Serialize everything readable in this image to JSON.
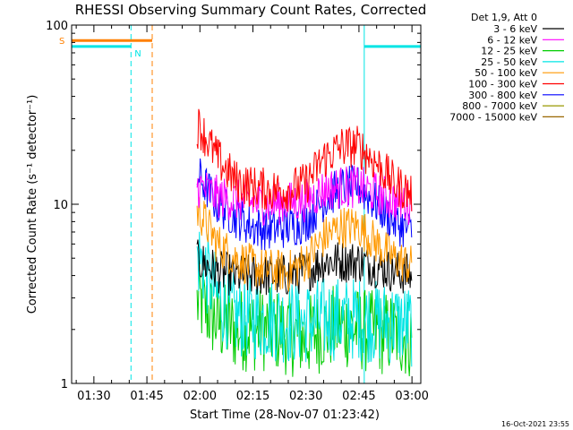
{
  "chart_data": {
    "type": "line",
    "title": "RHESSI Observing Summary Count Rates, Corrected",
    "xlabel": "Start Time (28-Nov-07 01:23:42)",
    "ylabel": "Corrected Count Rate (s⁻¹ detector⁻¹)",
    "x_tick_labels": [
      "01:30",
      "01:45",
      "02:00",
      "02:15",
      "02:30",
      "02:45",
      "03:00"
    ],
    "x_tick_times_min": [
      90,
      105,
      120,
      135,
      150,
      165,
      180
    ],
    "xlim_min": [
      83.7,
      182.5
    ],
    "y_scale": "log",
    "ylim": [
      1,
      100
    ],
    "y_tick_labels": [
      "1",
      "10",
      "100"
    ],
    "legend_title": "Det 1,9, Att 0",
    "legend_position": "right",
    "footer": "16-Oct-2021 23:55",
    "series": [
      {
        "name": "3 - 6 keV",
        "color": "#000000",
        "times_min": [
          90,
          95,
          100,
          105,
          110,
          115,
          120,
          125,
          130,
          135,
          140,
          145,
          150,
          155,
          160,
          165,
          170,
          175,
          180
        ],
        "values": [
          null,
          null,
          null,
          null,
          null,
          null,
          4.8,
          4.2,
          4.0,
          4.0,
          4.0,
          4.0,
          4.2,
          4.8,
          4.8,
          4.8,
          4.5,
          4.2,
          4.0
        ]
      },
      {
        "name": "6 - 12 keV",
        "color": "#ff00ff",
        "times_min": [
          90,
          95,
          100,
          105,
          110,
          115,
          120,
          125,
          130,
          135,
          140,
          145,
          150,
          155,
          160,
          165,
          170,
          175,
          180
        ],
        "values": [
          null,
          null,
          null,
          null,
          null,
          null,
          12.5,
          11.0,
          10.5,
          10.2,
          10.0,
          10.2,
          10.5,
          12.0,
          12.5,
          12.5,
          11.5,
          10.5,
          10.0
        ]
      },
      {
        "name": "12 - 25 keV",
        "color": "#00cc00",
        "times_min": [
          90,
          95,
          100,
          105,
          110,
          115,
          120,
          125,
          130,
          135,
          140,
          145,
          150,
          155,
          160,
          165,
          170,
          175,
          180
        ],
        "values": [
          null,
          null,
          null,
          null,
          null,
          null,
          2.8,
          2.2,
          2.0,
          2.0,
          2.0,
          1.9,
          1.8,
          2.0,
          2.1,
          2.0,
          1.9,
          1.9,
          1.8
        ]
      },
      {
        "name": "25 - 50 keV",
        "color": "#00e5e5",
        "times_min": [
          90,
          95,
          100,
          105,
          110,
          115,
          120,
          125,
          130,
          135,
          140,
          145,
          150,
          155,
          160,
          165,
          170,
          175,
          180
        ],
        "values": [
          null,
          null,
          null,
          null,
          null,
          null,
          5.0,
          3.0,
          2.4,
          2.3,
          2.3,
          2.2,
          2.2,
          2.3,
          2.3,
          2.3,
          2.2,
          2.2,
          2.1
        ]
      },
      {
        "name": "50 - 100 keV",
        "color": "#ff9900",
        "times_min": [
          90,
          95,
          100,
          105,
          110,
          115,
          120,
          125,
          130,
          135,
          140,
          145,
          150,
          155,
          160,
          165,
          170,
          175,
          180
        ],
        "values": [
          null,
          null,
          null,
          null,
          null,
          null,
          9.0,
          6.0,
          5.0,
          4.5,
          4.3,
          4.2,
          4.8,
          6.5,
          7.5,
          7.5,
          6.0,
          5.0,
          4.5
        ]
      },
      {
        "name": "100 - 300 keV",
        "color": "#ff0000",
        "times_min": [
          90,
          95,
          100,
          105,
          110,
          115,
          120,
          125,
          130,
          135,
          140,
          145,
          150,
          155,
          160,
          165,
          170,
          175,
          180
        ],
        "values": [
          null,
          null,
          null,
          null,
          null,
          null,
          27,
          18,
          13.5,
          12.5,
          12,
          12,
          13,
          18,
          21,
          21,
          17,
          13,
          11.5
        ]
      },
      {
        "name": "300 - 800 keV",
        "color": "#0000ff",
        "times_min": [
          90,
          95,
          100,
          105,
          110,
          115,
          120,
          125,
          130,
          135,
          140,
          145,
          150,
          155,
          160,
          165,
          170,
          175,
          180
        ],
        "values": [
          null,
          null,
          null,
          null,
          null,
          null,
          14,
          10,
          8.5,
          7.5,
          7.2,
          7.5,
          8,
          10.5,
          12.5,
          12.5,
          10,
          8,
          7
        ]
      },
      {
        "name": "800 - 7000 keV",
        "color": "#999900",
        "times_min": [],
        "values": []
      },
      {
        "name": "7000 - 15000 keV",
        "color": "#996600",
        "times_min": [],
        "values": []
      }
    ],
    "markers": [
      {
        "label": "S",
        "color": "#ff8000"
      },
      {
        "label": "N",
        "color": "#00e5e5"
      }
    ],
    "flag_bars": [
      {
        "color": "#ff8000",
        "t_start": 83.7,
        "t_end": 106.5,
        "level": 82
      },
      {
        "color": "#00e5e5",
        "t_start": 83.7,
        "t_end": 100.5,
        "level": 76
      },
      {
        "color": "#00e5e5",
        "t_start": 166.5,
        "t_end": 182.5,
        "level": 76
      }
    ],
    "vertical_lines": [
      {
        "t": 100.5,
        "color": "#00e5e5",
        "style": "dashed"
      },
      {
        "t": 106.5,
        "color": "#ff8000",
        "style": "dashed"
      },
      {
        "t": 166.5,
        "color": "#00e5e5",
        "style": "solid"
      },
      {
        "t": 182.5,
        "color": "#00e5e5",
        "style": "dashed"
      },
      {
        "t": 83.7,
        "color": "#00cc00",
        "style": "solid"
      }
    ]
  }
}
